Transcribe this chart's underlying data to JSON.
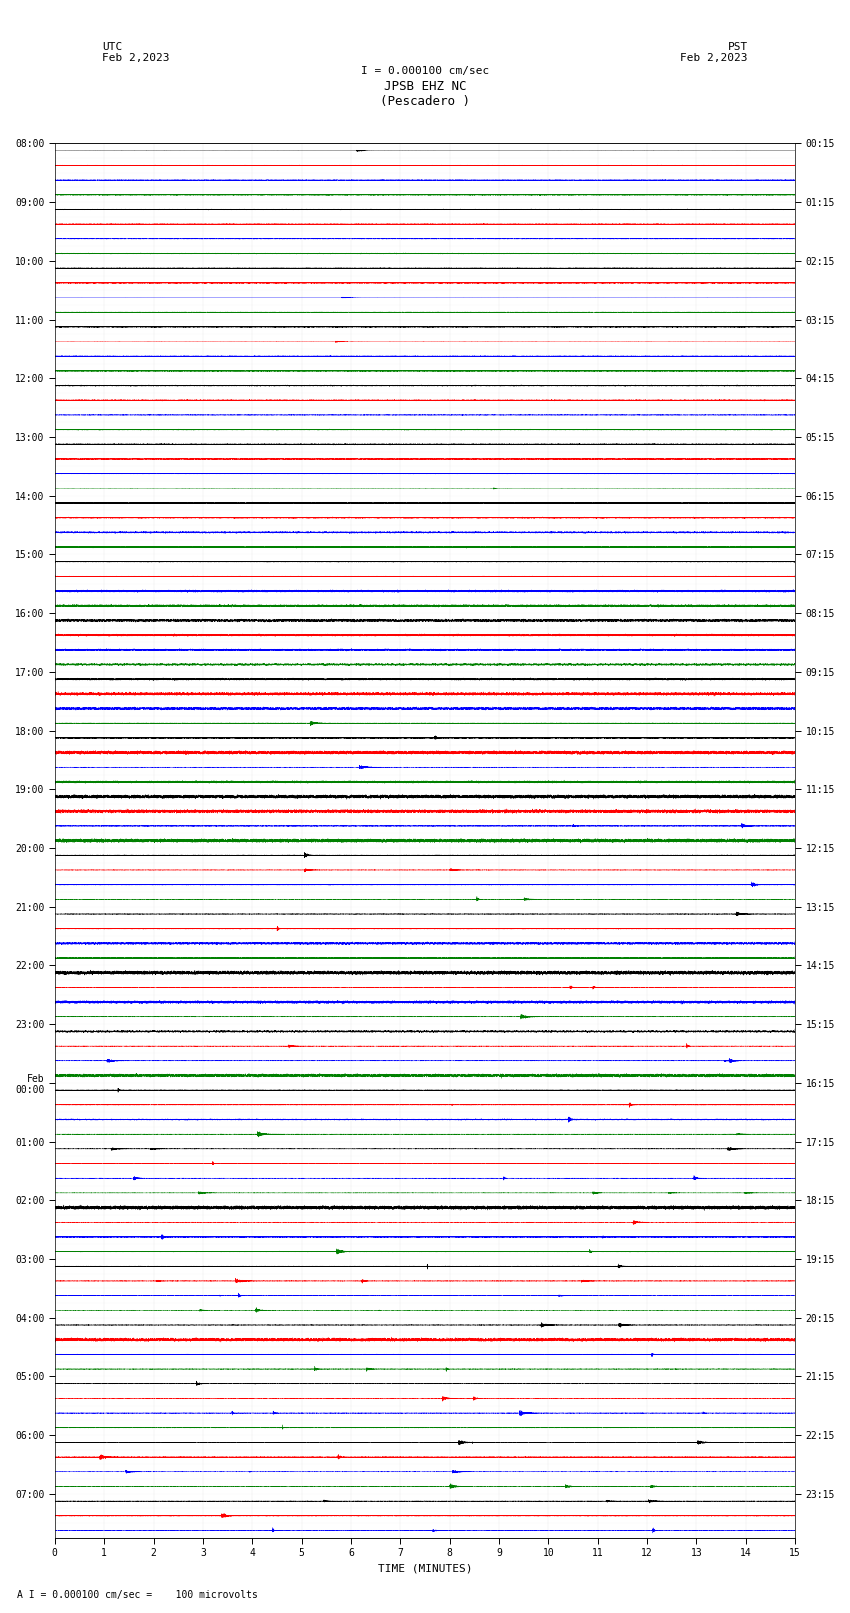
{
  "title_line1": "JPSB EHZ NC",
  "title_line2": "(Pescadero )",
  "scale_text": "I = 0.000100 cm/sec",
  "utc_label": "UTC",
  "utc_date": "Feb 2,2023",
  "pst_label": "PST",
  "pst_date": "Feb 2,2023",
  "xlabel": "TIME (MINUTES)",
  "bottom_note": "A I = 0.000100 cm/sec =    100 microvolts",
  "left_times": [
    "08:00",
    "",
    "",
    "",
    "09:00",
    "",
    "",
    "",
    "10:00",
    "",
    "",
    "",
    "11:00",
    "",
    "",
    "",
    "12:00",
    "",
    "",
    "",
    "13:00",
    "",
    "",
    "",
    "14:00",
    "",
    "",
    "",
    "15:00",
    "",
    "",
    "",
    "16:00",
    "",
    "",
    "",
    "17:00",
    "",
    "",
    "",
    "18:00",
    "",
    "",
    "",
    "19:00",
    "",
    "",
    "",
    "20:00",
    "",
    "",
    "",
    "21:00",
    "",
    "",
    "",
    "22:00",
    "",
    "",
    "",
    "23:00",
    "",
    "",
    "",
    "Feb\n00:00",
    "",
    "",
    "",
    "01:00",
    "",
    "",
    "",
    "02:00",
    "",
    "",
    "",
    "03:00",
    "",
    "",
    "",
    "04:00",
    "",
    "",
    "",
    "05:00",
    "",
    "",
    "",
    "06:00",
    "",
    "",
    "",
    "07:00",
    "",
    ""
  ],
  "right_times": [
    "00:15",
    "",
    "",
    "",
    "01:15",
    "",
    "",
    "",
    "02:15",
    "",
    "",
    "",
    "03:15",
    "",
    "",
    "",
    "04:15",
    "",
    "",
    "",
    "05:15",
    "",
    "",
    "",
    "06:15",
    "",
    "",
    "",
    "07:15",
    "",
    "",
    "",
    "08:15",
    "",
    "",
    "",
    "09:15",
    "",
    "",
    "",
    "10:15",
    "",
    "",
    "",
    "11:15",
    "",
    "",
    "",
    "12:15",
    "",
    "",
    "",
    "13:15",
    "",
    "",
    "",
    "14:15",
    "",
    "",
    "",
    "15:15",
    "",
    "",
    "",
    "16:15",
    "",
    "",
    "",
    "17:15",
    "",
    "",
    "",
    "18:15",
    "",
    "",
    "",
    "19:15",
    "",
    "",
    "",
    "20:15",
    "",
    "",
    "",
    "21:15",
    "",
    "",
    "",
    "22:15",
    "",
    "",
    "",
    "23:15",
    "",
    ""
  ],
  "colors": [
    "black",
    "red",
    "blue",
    "green"
  ],
  "n_rows": 95,
  "minutes": 15,
  "fig_width": 8.5,
  "fig_height": 16.13,
  "bg_color": "white",
  "noise_seed": 12345,
  "amplitude_profile": [
    0.12,
    0.12,
    0.12,
    0.12,
    0.12,
    0.12,
    0.12,
    0.12,
    0.12,
    0.12,
    0.12,
    0.12,
    0.12,
    0.12,
    0.12,
    0.12,
    0.14,
    0.14,
    0.14,
    0.14,
    0.14,
    0.14,
    0.14,
    0.14,
    0.16,
    0.18,
    0.2,
    0.22,
    0.24,
    0.26,
    0.28,
    0.3,
    0.3,
    0.32,
    0.34,
    0.36,
    0.36,
    0.38,
    0.4,
    0.4,
    0.4,
    0.4,
    0.42,
    0.44,
    0.44,
    0.44,
    0.44,
    0.44,
    0.44,
    0.44,
    0.44,
    0.44,
    0.44,
    0.44,
    0.44,
    0.44,
    0.44,
    0.44,
    0.44,
    0.44,
    0.44,
    0.44,
    0.44,
    0.44,
    0.44,
    0.44,
    0.44,
    0.44,
    0.44,
    0.44,
    0.44,
    0.44,
    0.44,
    0.44,
    0.44,
    0.44,
    0.44,
    0.44,
    0.44,
    0.44,
    0.44,
    0.44,
    0.44,
    0.44,
    0.44,
    0.44,
    0.44,
    0.44,
    0.44,
    0.44,
    0.44,
    0.44,
    0.44,
    0.44,
    0.44
  ]
}
